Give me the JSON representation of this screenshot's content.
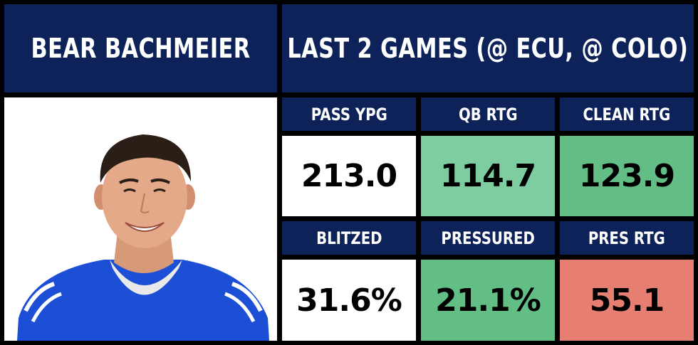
{
  "player_name": "BEAR BACHMEIER",
  "split_title": "LAST 2 GAMES (@ ECU, @ COLO)",
  "stats": [
    {
      "label": "PASS YPG",
      "value": "213.0",
      "color": "#ffffff"
    },
    {
      "label": "QB RTG",
      "value": "114.7",
      "color": "#7ecda0"
    },
    {
      "label": "CLEAN RTG",
      "value": "123.9",
      "color": "#63be86"
    },
    {
      "label": "BLITZED",
      "value": "31.6%",
      "color": "#ffffff"
    },
    {
      "label": "PRESSURED",
      "value": "21.1%",
      "color": "#63be86"
    },
    {
      "label": "PRES RTG",
      "value": "55.1",
      "color": "#e67e72"
    }
  ],
  "colors": {
    "header_bg": "#0c2259",
    "border": "#000000",
    "jersey_blue": "#1c4fd6"
  }
}
